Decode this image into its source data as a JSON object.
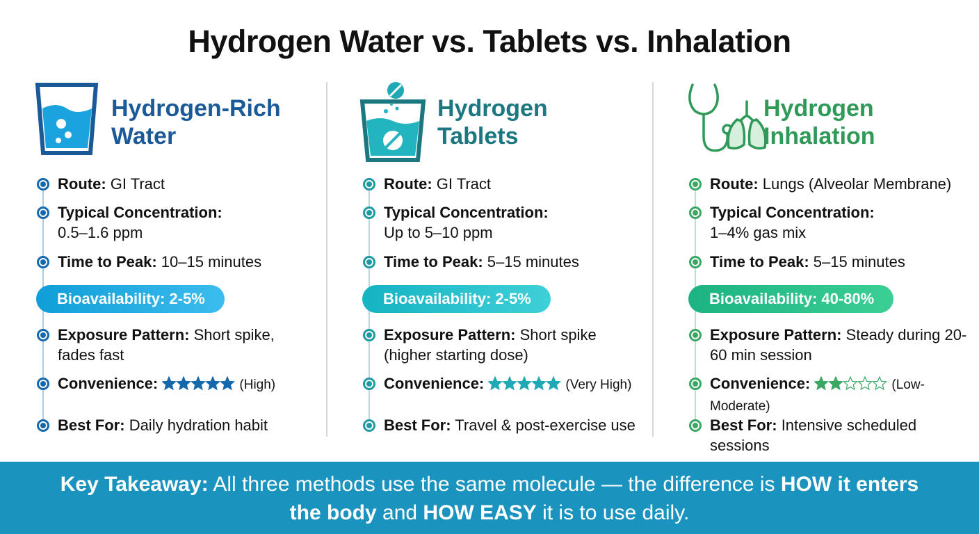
{
  "title": "Hydrogen Water vs. Tablets vs. Inhalation",
  "columns": [
    {
      "heading": [
        "Hydrogen-Rich",
        "Water"
      ],
      "color": "#1b5a98",
      "bullet": "#1668ad",
      "details": [
        {
          "label": "Route:",
          "text": "GI Tract"
        },
        {
          "label": "Typical Concentration:",
          "text": "0.5–1.6 ppm"
        },
        {
          "label": "Time to Peak:",
          "text": "10–15 minutes"
        }
      ],
      "badge": "Bioavailability: 2-5%",
      "badge_colors": [
        "#0f9ed8",
        "#3cbcee"
      ],
      "exposure": {
        "label": "Exposure Pattern:",
        "text": "Short spike, fades fast"
      },
      "convenience": {
        "label": "Convenience:",
        "rating": 5,
        "rating_max": 5,
        "note": "(High)",
        "star_color": "#1668ad"
      },
      "best": {
        "label": "Best For:",
        "text": "Daily hydration habit"
      }
    },
    {
      "heading": [
        "Hydrogen",
        "Tablets"
      ],
      "color": "#1b7780",
      "bullet": "#1f9aa3",
      "details": [
        {
          "label": "Route:",
          "text": "GI Tract"
        },
        {
          "label": "Typical Concentration:",
          "text": "Up to 5–10 ppm"
        },
        {
          "label": "Time to Peak:",
          "text": "5–15 minutes"
        }
      ],
      "badge": "Bioavailability: 2-5%",
      "badge_colors": [
        "#15b3c3",
        "#3fd0d8"
      ],
      "exposure": {
        "label": "Exposure Pattern:",
        "text": "Short spike (higher starting dose)"
      },
      "convenience": {
        "label": "Convenience:",
        "rating": 5,
        "rating_max": 5,
        "note": "(Very High)",
        "star_color": "#1fa9b5"
      },
      "best": {
        "label": "Best For:",
        "text": "Travel & post-exercise use"
      }
    },
    {
      "heading": [
        "Hydrogen",
        "Inhalation"
      ],
      "color": "#2f9a57",
      "bullet": "#3aa865",
      "details": [
        {
          "label": "Route:",
          "text": "Lungs (Alveolar Membrane)"
        },
        {
          "label": "Typical Concentration:",
          "text": "1–4% gas mix"
        },
        {
          "label": "Time to Peak:",
          "text": "5–15 minutes"
        }
      ],
      "badge": "Bioavailability: 40-80%",
      "badge_colors": [
        "#1cb382",
        "#3ccf95"
      ],
      "exposure": {
        "label": "Exposure Pattern:",
        "text": "Steady during 20-60 min session"
      },
      "convenience": {
        "label": "Convenience:",
        "rating": 2,
        "rating_max": 5,
        "note": "(Low-Moderate)",
        "star_color": "#3aa865"
      },
      "best": {
        "label": "Best For:",
        "text": "Intensive scheduled sessions"
      }
    }
  ],
  "takeaway": [
    {
      "text": "Key Takeaway:",
      "bold": true
    },
    {
      "text": " All three methods use the same molecule — the difference is ",
      "bold": false
    },
    {
      "text": "HOW it enters the body",
      "bold": true
    },
    {
      "text": " and ",
      "bold": false
    },
    {
      "text": "HOW EASY",
      "bold": true
    },
    {
      "text": " it is to use daily.",
      "bold": false
    }
  ]
}
